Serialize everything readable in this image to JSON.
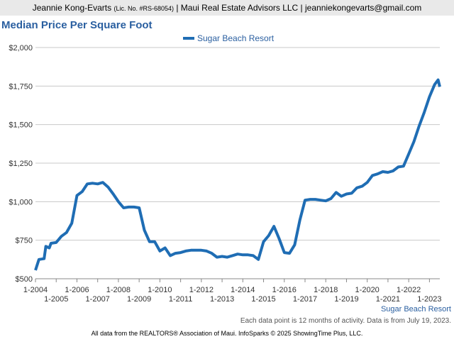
{
  "header": {
    "name": "Jeannie Kong-Evarts",
    "license": "(Lic. No. #RS-68054)",
    "details": "| Maui Real Estate Advisors LLC | jeanniekongevarts@gmail.com"
  },
  "chart_data": {
    "type": "line",
    "title": "Median Price Per Square Foot",
    "x": [
      "2004-01",
      "2004-03",
      "2004-06",
      "2004-07",
      "2004-09",
      "2004-10",
      "2005-01",
      "2005-04",
      "2005-07",
      "2005-10",
      "2006-01",
      "2006-04",
      "2006-07",
      "2006-10",
      "2007-01",
      "2007-04",
      "2007-07",
      "2007-10",
      "2008-01",
      "2008-04",
      "2008-07",
      "2008-10",
      "2009-01",
      "2009-04",
      "2009-07",
      "2009-10",
      "2010-01",
      "2010-04",
      "2010-07",
      "2010-10",
      "2011-01",
      "2011-04",
      "2011-07",
      "2011-10",
      "2012-01",
      "2012-04",
      "2012-07",
      "2012-10",
      "2013-01",
      "2013-04",
      "2013-07",
      "2013-10",
      "2014-01",
      "2014-04",
      "2014-07",
      "2014-10",
      "2015-01",
      "2015-04",
      "2015-07",
      "2015-10",
      "2016-01",
      "2016-04",
      "2016-07",
      "2016-10",
      "2017-01",
      "2017-04",
      "2017-07",
      "2017-10",
      "2018-01",
      "2018-04",
      "2018-07",
      "2018-10",
      "2019-01",
      "2019-04",
      "2019-07",
      "2019-10",
      "2020-01",
      "2020-04",
      "2020-07",
      "2020-10",
      "2021-01",
      "2021-04",
      "2021-07",
      "2021-10",
      "2022-01",
      "2022-04",
      "2022-07",
      "2022-10",
      "2023-01",
      "2023-04",
      "2023-06",
      "2023-07"
    ],
    "series": [
      {
        "name": "Sugar Beach Resort",
        "color": "#1f6db4",
        "values": [
          555,
          625,
          630,
          710,
          700,
          730,
          735,
          775,
          800,
          860,
          1040,
          1065,
          1115,
          1120,
          1115,
          1125,
          1095,
          1050,
          1000,
          960,
          965,
          965,
          960,
          815,
          740,
          740,
          680,
          700,
          650,
          665,
          670,
          680,
          685,
          685,
          685,
          680,
          665,
          640,
          645,
          640,
          650,
          660,
          655,
          655,
          650,
          625,
          740,
          780,
          840,
          760,
          670,
          665,
          720,
          880,
          1010,
          1015,
          1015,
          1010,
          1005,
          1020,
          1060,
          1035,
          1050,
          1055,
          1090,
          1100,
          1125,
          1170,
          1180,
          1195,
          1190,
          1200,
          1225,
          1230,
          1310,
          1390,
          1490,
          1580,
          1680,
          1760,
          1790,
          1745
        ]
      }
    ],
    "xlim": [
      "2004-01",
      "2023-07"
    ],
    "xticks": [
      {
        "value": "2004-01",
        "label": "1-2004"
      },
      {
        "value": "2005-01",
        "label": "1-2005"
      },
      {
        "value": "2006-01",
        "label": "1-2006"
      },
      {
        "value": "2007-01",
        "label": "1-2007"
      },
      {
        "value": "2008-01",
        "label": "1-2008"
      },
      {
        "value": "2009-01",
        "label": "1-2009"
      },
      {
        "value": "2010-01",
        "label": "1-2010"
      },
      {
        "value": "2011-01",
        "label": "1-2011"
      },
      {
        "value": "2012-01",
        "label": "1-2012"
      },
      {
        "value": "2013-01",
        "label": "1-2013"
      },
      {
        "value": "2014-01",
        "label": "1-2014"
      },
      {
        "value": "2015-01",
        "label": "1-2015"
      },
      {
        "value": "2016-01",
        "label": "1-2016"
      },
      {
        "value": "2017-01",
        "label": "1-2017"
      },
      {
        "value": "2018-01",
        "label": "1-2018"
      },
      {
        "value": "2019-01",
        "label": "1-2019"
      },
      {
        "value": "2020-01",
        "label": "1-2020"
      },
      {
        "value": "2021-01",
        "label": "1-2021"
      },
      {
        "value": "2022-01",
        "label": "1-2022"
      },
      {
        "value": "2023-01",
        "label": "1-2023"
      }
    ],
    "ylim": [
      500,
      2000
    ],
    "yticks": [
      {
        "value": 500,
        "label": "$500"
      },
      {
        "value": 750,
        "label": "$750"
      },
      {
        "value": 1000,
        "label": "$1,000"
      },
      {
        "value": 1250,
        "label": "$1,250"
      },
      {
        "value": 1500,
        "label": "$1,500"
      },
      {
        "value": 1750,
        "label": "$1,750"
      },
      {
        "value": 2000,
        "label": "$2,000"
      }
    ],
    "grid": true,
    "axis_caption": "Sugar Beach Resort",
    "note": "Each data point is 12 months of activity. Data is from July 19, 2023."
  },
  "footer": "All data from the REALTORS® Association of Maui. InfoSparks © 2025 ShowingTime Plus, LLC."
}
